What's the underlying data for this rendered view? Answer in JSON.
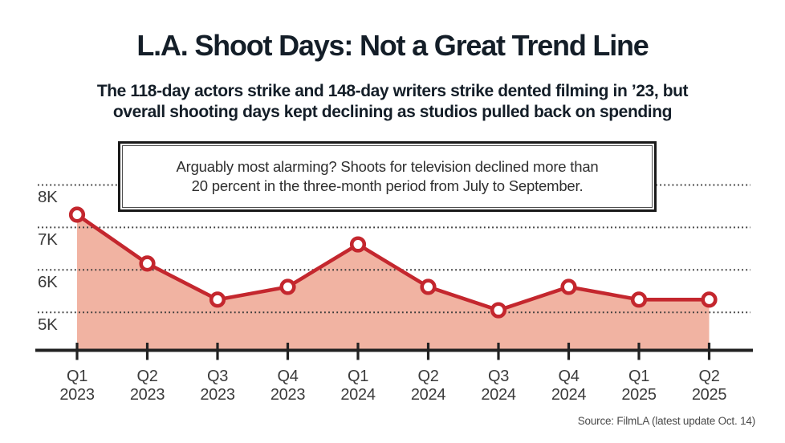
{
  "chart_data": {
    "type": "area",
    "title": "L.A. Shoot Days: Not a Great Trend Line",
    "subtitle_lines": [
      "The 118-day actors strike and 148-day writers strike dented filming in ’23, but",
      "overall shooting days kept declining as studios pulled back on spending"
    ],
    "annotation_lines": [
      "Arguably most alarming? Shoots for television declined more than",
      "20 percent in the three-month period from July to September."
    ],
    "categories": [
      "Q1 2023",
      "Q2 2023",
      "Q3 2023",
      "Q4 2023",
      "Q1 2024",
      "Q2 2024",
      "Q3 2024",
      "Q4 2024",
      "Q1 2025",
      "Q2 2025"
    ],
    "values": [
      7300,
      6150,
      5300,
      5600,
      6600,
      5600,
      5050,
      5600,
      5300,
      5300
    ],
    "unit": "quarterly shoot days",
    "xlabel": "",
    "ylabel": "",
    "yticks": [
      {
        "label": "8K",
        "value": 8000
      },
      {
        "label": "7K",
        "value": 7000
      },
      {
        "label": "6K",
        "value": 6000
      },
      {
        "label": "5K",
        "value": 5000
      }
    ],
    "ylim": [
      4100,
      8000
    ],
    "grid": "horizontal dotted",
    "legend": "none",
    "source": "Source: FilmLA (latest update Oct. 14)",
    "colors": {
      "line": "#c4272e",
      "fill": "#f1b3a2",
      "marker_fill": "#ffffff",
      "axis": "#222222",
      "grid": "#3a3a3a",
      "title": "#141e28",
      "tick_label": "#3b3b3b",
      "source": "#4a4a4a"
    }
  }
}
